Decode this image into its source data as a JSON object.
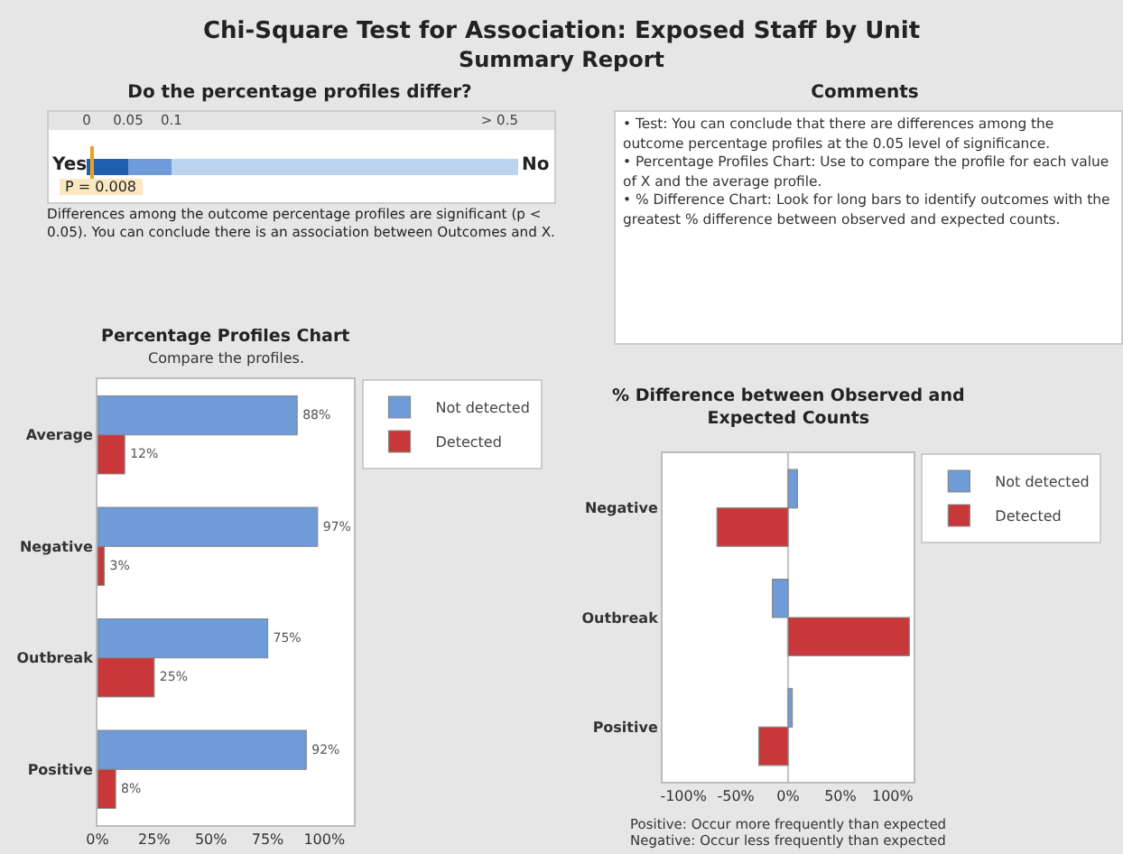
{
  "chart_data": [
    {
      "type": "other",
      "title": "Chi-Square Test for Association: Exposed Staff by Unit",
      "subtitle": "Summary Report"
    },
    {
      "type": "other",
      "title": "Do the percentage profiles differ?",
      "annotations": [
        "0",
        "0.05",
        "0.1",
        "> 0.5",
        "Yes",
        "No",
        "P = 0.008",
        "Differences among the outcome percentage profiles are significant (p < 0.05). You can conclude there is an association between Outcomes and X."
      ]
    },
    {
      "type": "other",
      "title": "Comments",
      "annotations": [
        "• Test: You can conclude that there are differences among the outcome percentage profiles at the 0.05 level of significance.",
        "• Percentage Profiles Chart: Use to compare the profile for each value of X and the average profile.",
        "• % Difference Chart: Look for long bars to identify outcomes with the greatest % difference between observed and expected counts."
      ]
    },
    {
      "type": "bar",
      "orientation": "horizontal",
      "title": "Percentage Profiles Chart",
      "subtitle": "Compare the profiles.",
      "categories": [
        "Average",
        "Negative",
        "Outbreak",
        "Positive"
      ],
      "series": [
        {
          "name": "Not detected",
          "color": "#6f9bd8",
          "values": [
            88,
            97,
            75,
            92
          ],
          "value_labels": [
            "88%",
            "97%",
            "75%",
            "92%"
          ]
        },
        {
          "name": "Detected",
          "color": "#c8383a",
          "values": [
            12,
            3,
            25,
            8
          ],
          "value_labels": [
            "12%",
            "3%",
            "25%",
            "8%"
          ]
        }
      ],
      "xlim": [
        0,
        113
      ],
      "xticks": [
        {
          "value": 0,
          "label": "0%"
        },
        {
          "value": 25,
          "label": "25%"
        },
        {
          "value": 50,
          "label": "50%"
        },
        {
          "value": 75,
          "label": "75%"
        },
        {
          "value": 100,
          "label": "100%"
        }
      ],
      "grid": false,
      "legend": "top right"
    },
    {
      "type": "bar",
      "orientation": "horizontal",
      "title": "% Difference between Observed and Expected Counts",
      "categories": [
        "Negative",
        "Outbreak",
        "Positive"
      ],
      "series": [
        {
          "name": "Not detected",
          "color": "#6f9bd8",
          "values": [
            9,
            -15,
            4
          ]
        },
        {
          "name": "Detected",
          "color": "#c8383a",
          "values": [
            -68,
            116,
            -28
          ]
        }
      ],
      "xlim": [
        -120,
        120
      ],
      "xticks": [
        {
          "value": -100,
          "label": "-100%"
        },
        {
          "value": -50,
          "label": "-50%"
        },
        {
          "value": 0,
          "label": "0%"
        },
        {
          "value": 50,
          "label": "50%"
        },
        {
          "value": 100,
          "label": "100%"
        }
      ],
      "grid": false,
      "legend": "top right",
      "ref_lines": [
        {
          "axis": "x",
          "value": 0,
          "color": "#c8c8c8"
        }
      ],
      "annotations": [
        "Positive: Occur more frequently than expected",
        "Negative: Occur less frequently than expected"
      ]
    }
  ]
}
